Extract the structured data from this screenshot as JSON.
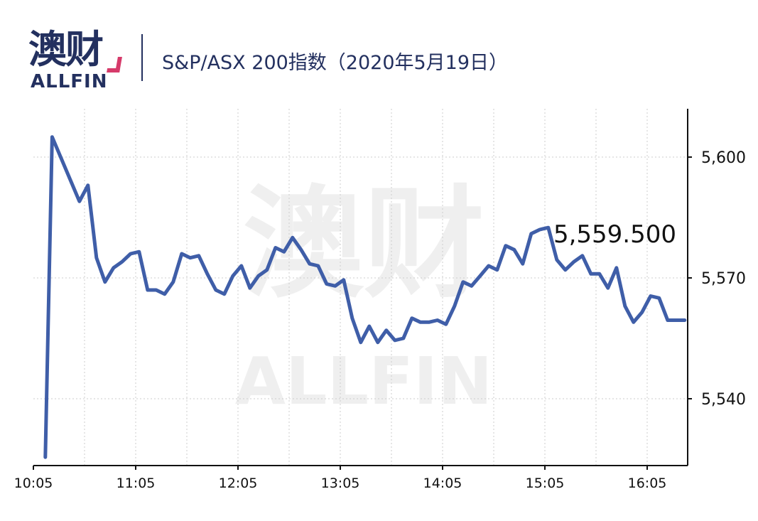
{
  "logo": {
    "name_cn": "澳财",
    "name_en": "ALLFIN"
  },
  "header": {
    "title": "S&P/ASX 200指数（2020年5月19日）"
  },
  "watermark": {
    "cn": "澳财",
    "en": "ALLFIN"
  },
  "colors": {
    "line": "#3f5ea8",
    "text": "#23305f",
    "accent": "#d63a6a",
    "grid": "#cccccc"
  },
  "chart_data": {
    "type": "line",
    "title": "S&P/ASX 200指数（2020年5月19日）",
    "xlabel": "",
    "ylabel": "",
    "x_ticks": [
      "10:05",
      "11:05",
      "12:05",
      "13:05",
      "14:05",
      "15:05",
      "16:05"
    ],
    "y_ticks": [
      {
        "value": 5540,
        "label": "5,540"
      },
      {
        "value": 5570,
        "label": "5,570"
      },
      {
        "value": 5600,
        "label": "5,600"
      }
    ],
    "ylim": [
      5523,
      5612
    ],
    "xlim_minutes_from_1005": [
      0,
      385
    ],
    "grid": true,
    "y_axis_side": "right",
    "last_value_label": "5,559.500",
    "series": [
      {
        "points": [
          [
            7,
            5525.5
          ],
          [
            11,
            5605
          ],
          [
            20,
            5596
          ],
          [
            27,
            5589
          ],
          [
            32,
            5593
          ],
          [
            37,
            5575
          ],
          [
            42,
            5569
          ],
          [
            47,
            5572.5
          ],
          [
            52,
            5574
          ],
          [
            57,
            5576
          ],
          [
            62,
            5576.5
          ],
          [
            67,
            5567
          ],
          [
            72,
            5567
          ],
          [
            77,
            5566
          ],
          [
            82,
            5569
          ],
          [
            87,
            5576
          ],
          [
            92,
            5575
          ],
          [
            97,
            5575.5
          ],
          [
            102,
            5571
          ],
          [
            107,
            5567
          ],
          [
            112,
            5566
          ],
          [
            117,
            5570.5
          ],
          [
            122,
            5573
          ],
          [
            127,
            5567.5
          ],
          [
            132,
            5570.5
          ],
          [
            137,
            5572
          ],
          [
            142,
            5577.5
          ],
          [
            147,
            5576.5
          ],
          [
            152,
            5580
          ],
          [
            157,
            5577
          ],
          [
            162,
            5573.5
          ],
          [
            167,
            5573
          ],
          [
            172,
            5568.5
          ],
          [
            177,
            5568
          ],
          [
            182,
            5569.5
          ],
          [
            187,
            5560
          ],
          [
            192,
            5554
          ],
          [
            197,
            5558
          ],
          [
            202,
            5554
          ],
          [
            207,
            5557
          ],
          [
            212,
            5554.5
          ],
          [
            217,
            5555
          ],
          [
            222,
            5560
          ],
          [
            227,
            5559
          ],
          [
            232,
            5559
          ],
          [
            237,
            5559.5
          ],
          [
            242,
            5558.5
          ],
          [
            247,
            5563
          ],
          [
            252,
            5569
          ],
          [
            257,
            5568
          ],
          [
            262,
            5570.5
          ],
          [
            267,
            5573
          ],
          [
            272,
            5572
          ],
          [
            277,
            5578
          ],
          [
            282,
            5577
          ],
          [
            287,
            5573.5
          ],
          [
            292,
            5581
          ],
          [
            297,
            5582
          ],
          [
            302,
            5582.5
          ],
          [
            307,
            5574.5
          ],
          [
            312,
            5572
          ],
          [
            317,
            5574
          ],
          [
            322,
            5575.5
          ],
          [
            327,
            5571
          ],
          [
            332,
            5571
          ],
          [
            337,
            5567.5
          ],
          [
            342,
            5572.5
          ],
          [
            347,
            5563
          ],
          [
            352,
            5559
          ],
          [
            357,
            5561.5
          ],
          [
            362,
            5565.5
          ],
          [
            367,
            5565
          ],
          [
            372,
            5559.5
          ],
          [
            377,
            5559.5
          ],
          [
            382,
            5559.5
          ]
        ]
      }
    ]
  }
}
